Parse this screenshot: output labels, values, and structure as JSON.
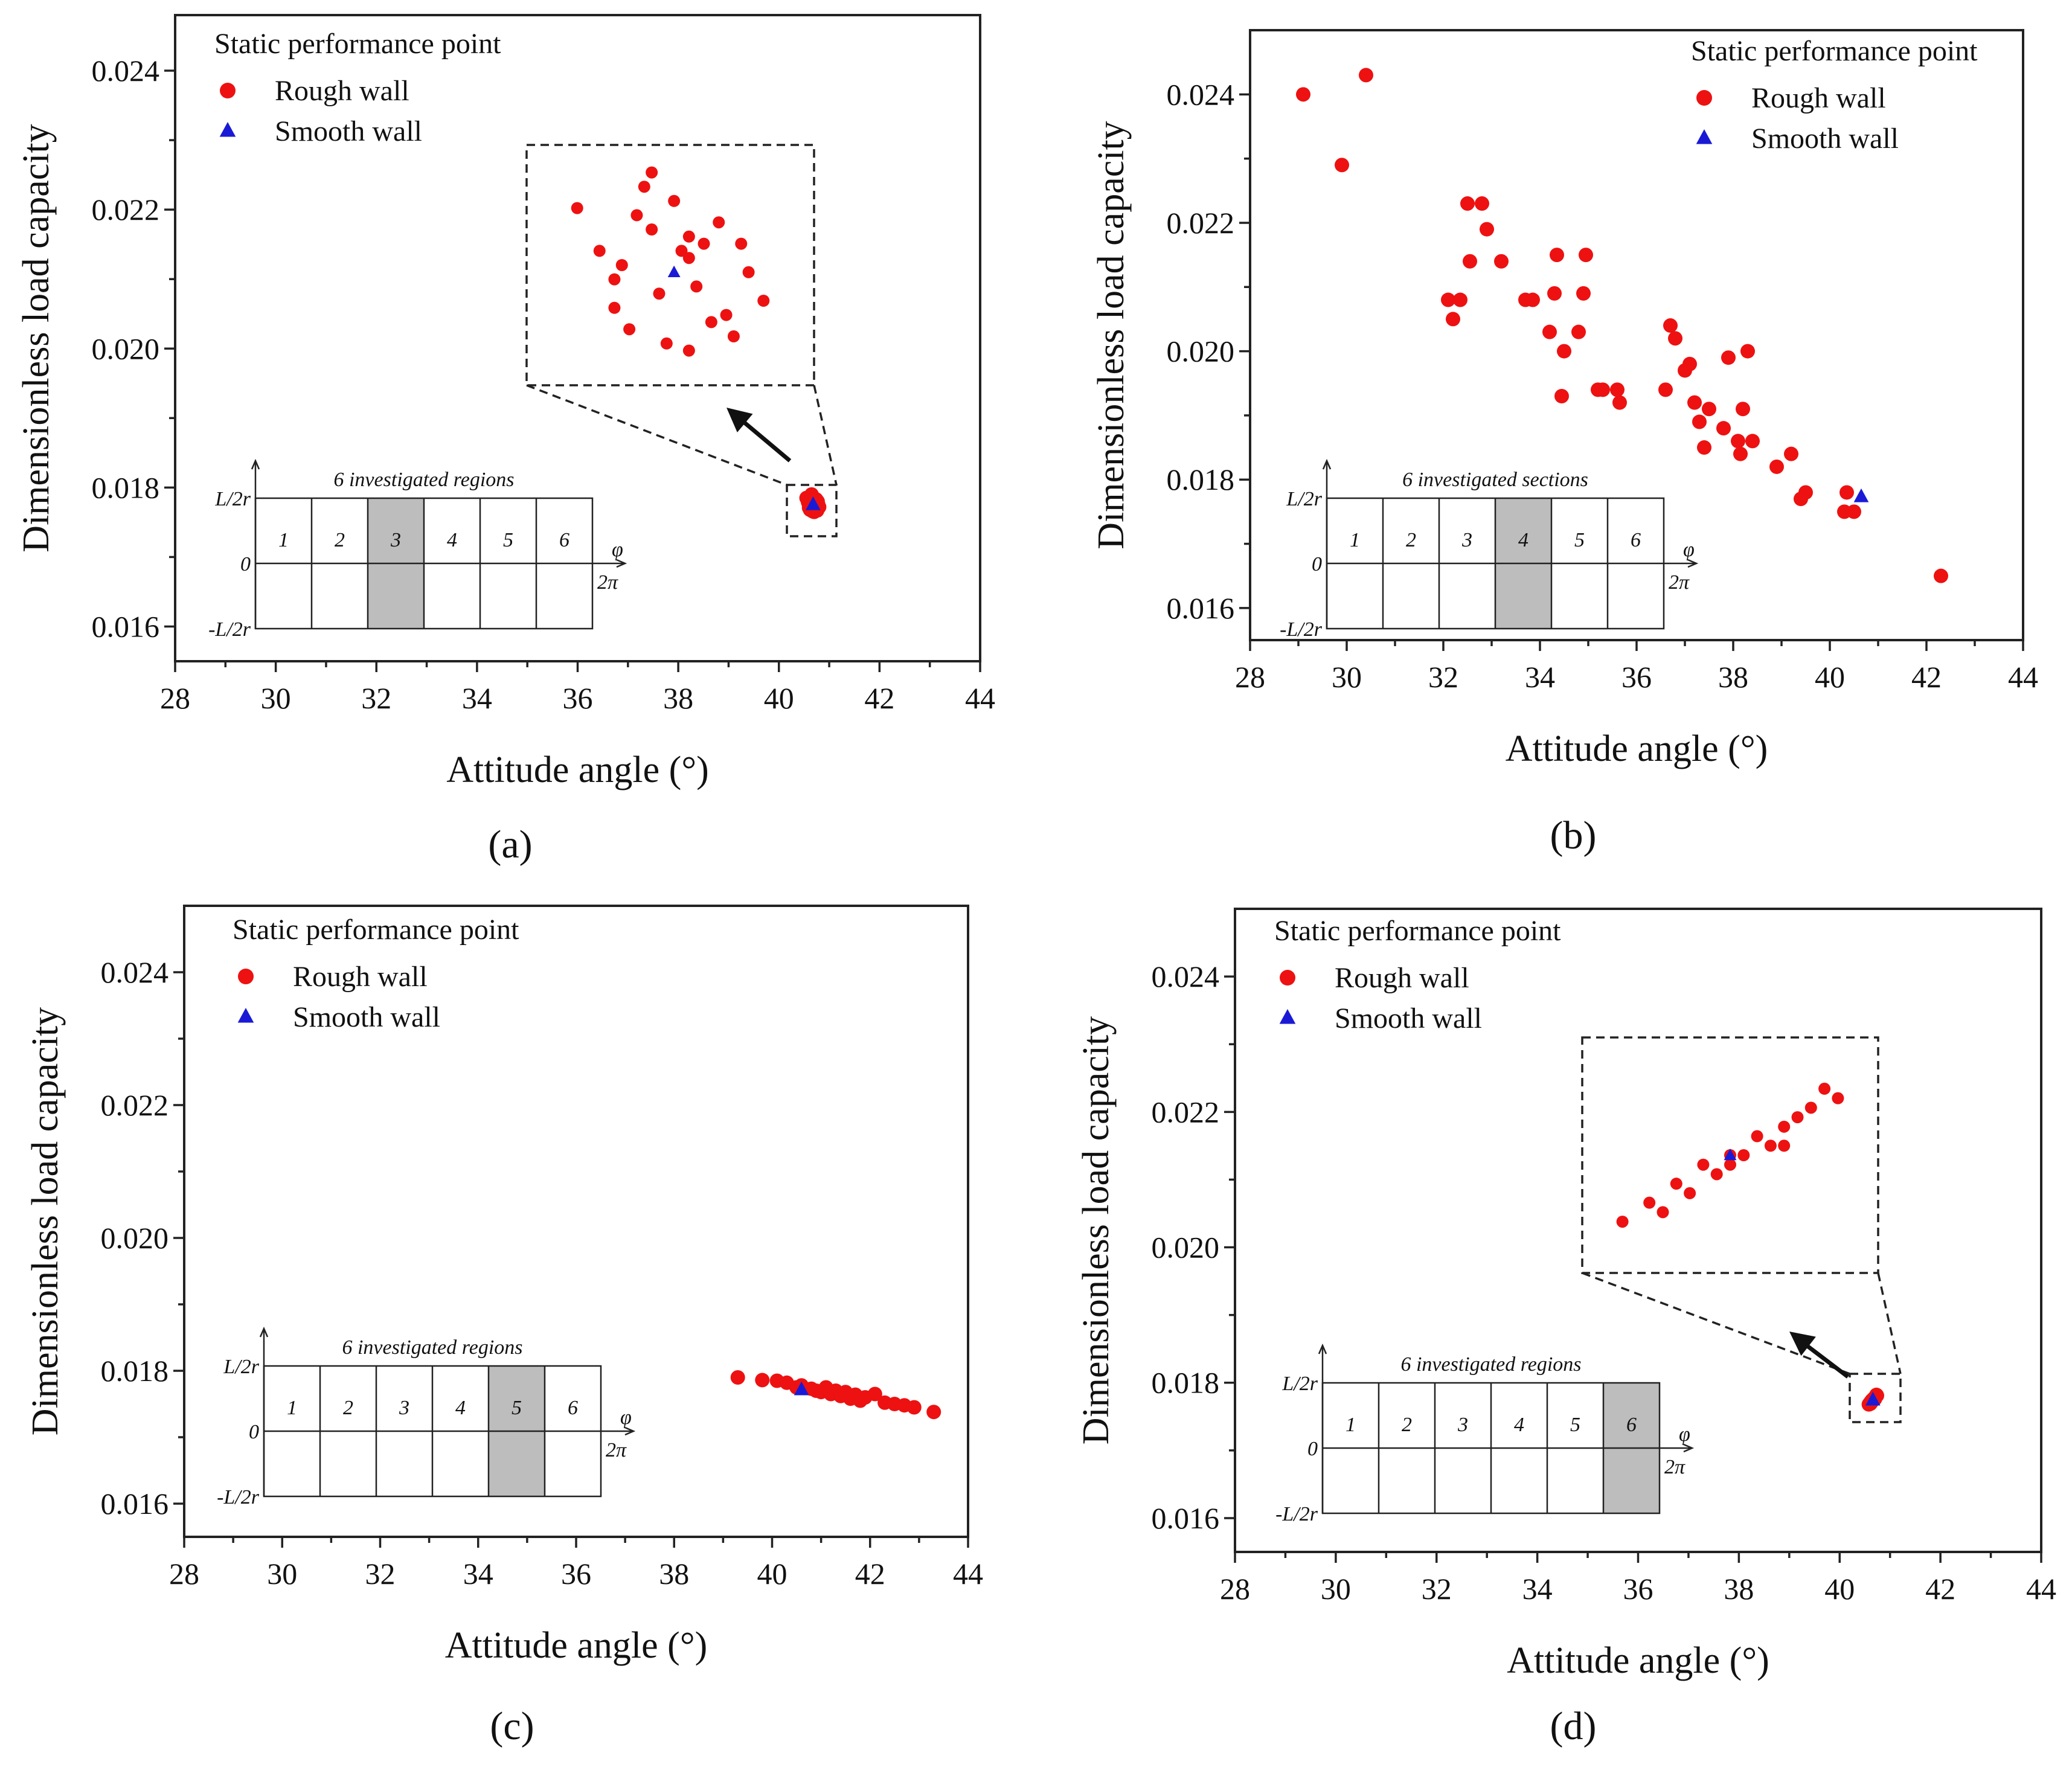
{
  "figure": {
    "xlabel": "Attitude angle (°)",
    "ylabel": "Dimensionless load capacity",
    "legend_title": "Static performance point",
    "legend_rough": "Rough wall",
    "legend_smooth": "Smooth wall",
    "colors": {
      "rough": "#ee1111",
      "smooth": "#1a1ad6"
    },
    "inset_y_labels": [
      "L/2r",
      "0",
      "-L/2r"
    ],
    "inset_x_labels": [
      "φ",
      "2π"
    ],
    "region_numbers": [
      "1",
      "2",
      "3",
      "4",
      "5",
      "6"
    ]
  },
  "chart_data": [
    {
      "type": "scatter",
      "panel_label": "(a)",
      "inset_title": "6 investigated regions",
      "highlighted_region": 3,
      "xlim": [
        28,
        44
      ],
      "ylim": [
        0.0155,
        0.0248
      ],
      "xticks": [
        "28",
        "30",
        "32",
        "34",
        "36",
        "38",
        "40",
        "42",
        "44"
      ],
      "yticks": [
        "0.016",
        "0.018",
        "0.020",
        "0.022",
        "0.024"
      ],
      "legend_position": "top-left",
      "rough_wall": {
        "x": [
          40.55,
          40.6,
          40.65,
          40.7,
          40.75,
          40.8,
          40.62,
          40.68,
          40.72,
          40.58,
          40.66,
          40.7,
          40.74,
          40.64,
          40.78,
          40.6,
          40.69,
          40.73,
          40.63,
          40.77,
          40.67,
          40.71,
          40.61,
          40.76,
          40.65,
          40.7
        ],
        "y": [
          0.01785,
          0.01775,
          0.01782,
          0.01778,
          0.0177,
          0.01772,
          0.01768,
          0.01786,
          0.0178,
          0.01779,
          0.01773,
          0.01765,
          0.01783,
          0.01788,
          0.01776,
          0.01771,
          0.01779,
          0.01769,
          0.01784,
          0.0178,
          0.01766,
          0.01774,
          0.01777,
          0.01767,
          0.0179,
          0.01781
        ]
      },
      "smooth_wall": {
        "x": [
          40.68
        ],
        "y": [
          0.01776
        ]
      },
      "zoom_inset": true
    },
    {
      "type": "scatter",
      "panel_label": "(b)",
      "inset_title": "6 investigated sections",
      "highlighted_region": 4,
      "xlim": [
        28,
        44
      ],
      "ylim": [
        0.0155,
        0.025
      ],
      "xticks": [
        "28",
        "30",
        "32",
        "34",
        "36",
        "38",
        "40",
        "42",
        "44"
      ],
      "yticks": [
        "0.016",
        "0.018",
        "0.020",
        "0.022",
        "0.024"
      ],
      "legend_position": "top-right",
      "rough_wall": {
        "x": [
          29.1,
          29.9,
          30.4,
          32.1,
          32.2,
          32.35,
          32.5,
          32.55,
          32.8,
          32.9,
          33.2,
          33.7,
          33.85,
          34.2,
          34.3,
          34.35,
          34.45,
          34.5,
          34.8,
          34.9,
          34.95,
          35.2,
          35.3,
          35.6,
          35.65,
          36.6,
          36.7,
          36.8,
          37.0,
          37.1,
          37.2,
          37.3,
          37.4,
          37.5,
          37.8,
          37.9,
          38.1,
          38.15,
          38.2,
          38.3,
          38.4,
          38.9,
          39.2,
          39.4,
          39.5,
          40.3,
          40.35,
          40.5,
          42.3
        ],
        "y": [
          0.024,
          0.0229,
          0.0243,
          0.0208,
          0.0205,
          0.0208,
          0.0223,
          0.0214,
          0.0223,
          0.0219,
          0.0214,
          0.0208,
          0.0208,
          0.0203,
          0.0209,
          0.0215,
          0.0193,
          0.02,
          0.0203,
          0.0209,
          0.0215,
          0.0194,
          0.0194,
          0.0194,
          0.0192,
          0.0194,
          0.0204,
          0.0202,
          0.0197,
          0.0198,
          0.0192,
          0.0189,
          0.0185,
          0.0191,
          0.0188,
          0.0199,
          0.0186,
          0.0184,
          0.0191,
          0.02,
          0.0186,
          0.0182,
          0.0184,
          0.0177,
          0.0178,
          0.0175,
          0.0178,
          0.0175,
          0.0165
        ]
      },
      "smooth_wall": {
        "x": [
          40.65
        ],
        "y": [
          0.01774
        ]
      },
      "zoom_inset": false
    },
    {
      "type": "scatter",
      "panel_label": "(c)",
      "inset_title": "6 investigated regions",
      "highlighted_region": 5,
      "xlim": [
        28,
        44
      ],
      "ylim": [
        0.0155,
        0.025
      ],
      "xticks": [
        "28",
        "30",
        "32",
        "34",
        "36",
        "38",
        "40",
        "42",
        "44"
      ],
      "yticks": [
        "0.016",
        "0.018",
        "0.020",
        "0.022",
        "0.024"
      ],
      "legend_position": "top-left",
      "rough_wall": {
        "x": [
          39.3,
          39.8,
          40.1,
          40.3,
          40.5,
          40.6,
          40.8,
          40.9,
          41.0,
          41.1,
          41.2,
          41.3,
          41.4,
          41.5,
          41.6,
          41.7,
          41.8,
          41.9,
          42.1,
          42.3,
          42.5,
          42.7,
          42.9,
          43.3
        ],
        "y": [
          0.0179,
          0.01786,
          0.01785,
          0.01782,
          0.01775,
          0.01778,
          0.01773,
          0.0177,
          0.01768,
          0.01775,
          0.01765,
          0.0177,
          0.01762,
          0.01768,
          0.01758,
          0.01764,
          0.01755,
          0.0176,
          0.01765,
          0.01752,
          0.0175,
          0.01748,
          0.01745,
          0.01738
        ]
      },
      "smooth_wall": {
        "x": [
          40.6
        ],
        "y": [
          0.01772
        ]
      },
      "zoom_inset": false
    },
    {
      "type": "scatter",
      "panel_label": "(d)",
      "inset_title": "6 investigated regions",
      "highlighted_region": 6,
      "xlim": [
        28,
        44
      ],
      "ylim": [
        0.0155,
        0.025
      ],
      "xticks": [
        "28",
        "30",
        "32",
        "34",
        "36",
        "38",
        "40",
        "42",
        "44"
      ],
      "yticks": [
        "0.016",
        "0.018",
        "0.020",
        "0.022",
        "0.024"
      ],
      "legend_position": "top-left",
      "rough_wall": {
        "x": [
          40.58,
          40.62,
          40.66,
          40.7,
          40.74,
          40.6,
          40.64,
          40.68,
          40.72,
          40.65,
          40.69,
          40.63,
          40.67,
          40.71,
          40.61,
          40.73,
          40.66,
          40.7
        ],
        "y": [
          0.01768,
          0.01772,
          0.01775,
          0.01778,
          0.01781,
          0.0177,
          0.01774,
          0.01777,
          0.0178,
          0.01773,
          0.01776,
          0.01771,
          0.01775,
          0.01779,
          0.01769,
          0.01782,
          0.01774,
          0.01776
        ]
      },
      "smooth_wall": {
        "x": [
          40.66
        ],
        "y": [
          0.01775
        ]
      },
      "zoom_inset": true
    }
  ]
}
